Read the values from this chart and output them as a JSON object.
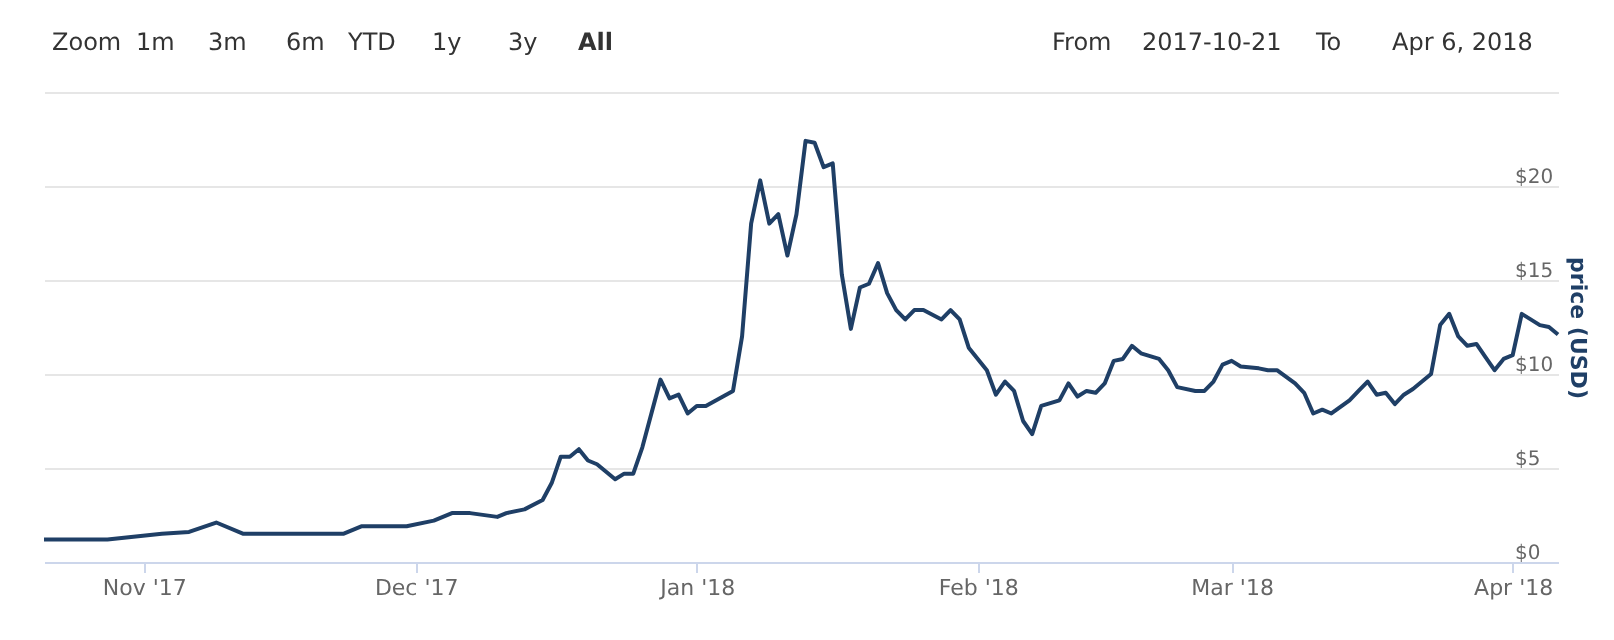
{
  "chart_data": {
    "type": "line",
    "ylabel": "price (USD)",
    "x": [
      "2017-10-21",
      "2017-10-28",
      "2017-11-03",
      "2017-11-06",
      "2017-11-09",
      "2017-11-12",
      "2017-11-16",
      "2017-11-23",
      "2017-11-25",
      "2017-11-30",
      "2017-12-03",
      "2017-12-05",
      "2017-12-07",
      "2017-12-10",
      "2017-12-11",
      "2017-12-13",
      "2017-12-15",
      "2017-12-16",
      "2017-12-17",
      "2017-12-18",
      "2017-12-19",
      "2017-12-20",
      "2017-12-21",
      "2017-12-23",
      "2017-12-24",
      "2017-12-25",
      "2017-12-26",
      "2017-12-28",
      "2017-12-29",
      "2017-12-30",
      "2017-12-31",
      "2018-01-01",
      "2018-01-02",
      "2018-01-05",
      "2018-01-06",
      "2018-01-07",
      "2018-01-08",
      "2018-01-09",
      "2018-01-10",
      "2018-01-11",
      "2018-01-12",
      "2018-01-13",
      "2018-01-14",
      "2018-01-15",
      "2018-01-16",
      "2018-01-17",
      "2018-01-18",
      "2018-01-19",
      "2018-01-20",
      "2018-01-21",
      "2018-01-22",
      "2018-01-23",
      "2018-01-24",
      "2018-01-25",
      "2018-01-26",
      "2018-01-28",
      "2018-01-29",
      "2018-01-30",
      "2018-01-31",
      "2018-02-02",
      "2018-02-03",
      "2018-02-04",
      "2018-02-05",
      "2018-02-06",
      "2018-02-07",
      "2018-02-08",
      "2018-02-10",
      "2018-02-11",
      "2018-02-12",
      "2018-02-13",
      "2018-02-14",
      "2018-02-15",
      "2018-02-16",
      "2018-02-17",
      "2018-02-18",
      "2018-02-19",
      "2018-02-21",
      "2018-02-22",
      "2018-02-23",
      "2018-02-25",
      "2018-02-26",
      "2018-02-27",
      "2018-02-28",
      "2018-03-01",
      "2018-03-02",
      "2018-03-04",
      "2018-03-05",
      "2018-03-06",
      "2018-03-08",
      "2018-03-09",
      "2018-03-10",
      "2018-03-11",
      "2018-03-12",
      "2018-03-14",
      "2018-03-15",
      "2018-03-16",
      "2018-03-17",
      "2018-03-18",
      "2018-03-19",
      "2018-03-20",
      "2018-03-21",
      "2018-03-23",
      "2018-03-24",
      "2018-03-25",
      "2018-03-26",
      "2018-03-27",
      "2018-03-28",
      "2018-03-29",
      "2018-03-30",
      "2018-03-31",
      "2018-04-01",
      "2018-04-02",
      "2018-04-04",
      "2018-04-05",
      "2018-04-06"
    ],
    "series": [
      {
        "color": "#1f3f66",
        "values": [
          1.2,
          1.2,
          1.5,
          1.6,
          2.1,
          1.5,
          1.5,
          1.5,
          1.9,
          1.9,
          2.2,
          2.6,
          2.6,
          2.4,
          2.6,
          2.8,
          3.3,
          4.2,
          5.6,
          5.6,
          6.0,
          5.4,
          5.2,
          4.4,
          4.7,
          4.7,
          6.1,
          9.7,
          8.7,
          8.9,
          7.9,
          8.3,
          8.3,
          9.1,
          12.0,
          18.0,
          20.3,
          18.0,
          18.5,
          16.3,
          18.5,
          22.4,
          22.3,
          21.0,
          21.2,
          15.3,
          12.4,
          14.6,
          14.8,
          15.9,
          14.3,
          13.4,
          12.9,
          13.4,
          13.4,
          12.9,
          13.4,
          12.9,
          11.4,
          10.2,
          8.9,
          9.6,
          9.1,
          7.5,
          6.8,
          8.3,
          8.6,
          9.5,
          8.8,
          9.1,
          9.0,
          9.5,
          10.7,
          10.8,
          11.5,
          11.1,
          10.8,
          10.2,
          9.3,
          9.1,
          9.1,
          9.6,
          10.5,
          10.7,
          10.4,
          10.3,
          10.2,
          10.2,
          9.5,
          9.0,
          7.9,
          8.1,
          7.9,
          8.6,
          9.1,
          9.6,
          8.9,
          9.0,
          8.4,
          8.9,
          9.2,
          10.0,
          12.6,
          13.2,
          12.0,
          11.5,
          11.6,
          10.9,
          10.2,
          10.8,
          11.0,
          13.2,
          12.6,
          12.5,
          12.1
        ]
      }
    ],
    "xlim": [
      "2017-10-21",
      "2018-04-06"
    ],
    "xticks": [
      {
        "value": "2017-11-01",
        "label": "Nov '17"
      },
      {
        "value": "2017-12-01",
        "label": "Dec '17"
      },
      {
        "value": "2018-01-01",
        "label": "Jan '18"
      },
      {
        "value": "2018-02-01",
        "label": "Feb '18"
      },
      {
        "value": "2018-03-01",
        "label": "Mar '18"
      },
      {
        "value": "2018-04-01",
        "label": "Apr '18"
      }
    ],
    "ylim": [
      0,
      25
    ],
    "yticks": [
      {
        "value": 0,
        "label": "$0"
      },
      {
        "value": 5,
        "label": "$5"
      },
      {
        "value": 10,
        "label": "$10"
      },
      {
        "value": 15,
        "label": "$15"
      },
      {
        "value": 20,
        "label": "$20"
      },
      {
        "value": 25,
        "label": null
      }
    ],
    "grid": "y",
    "marker": "none",
    "line_style": "solid",
    "annotations": [
      "Zoom",
      "1m",
      "3m",
      "6m",
      "YTD",
      "1y",
      "3y",
      "All",
      "From",
      "2017-10-21",
      "To",
      "Apr 6, 2018"
    ]
  }
}
